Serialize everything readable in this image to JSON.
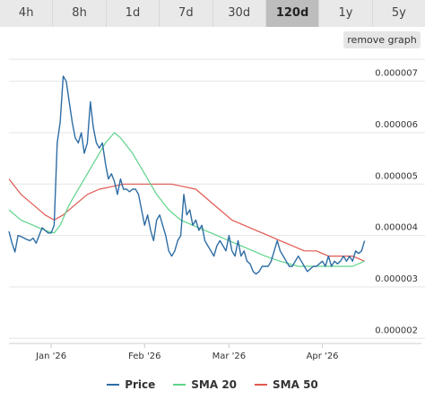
{
  "tabs": [
    {
      "label": "4h",
      "active": false
    },
    {
      "label": "8h",
      "active": false
    },
    {
      "label": "1d",
      "active": false
    },
    {
      "label": "7d",
      "active": false
    },
    {
      "label": "30d",
      "active": false
    },
    {
      "label": "120d",
      "active": true
    },
    {
      "label": "1y",
      "active": false
    },
    {
      "label": "5y",
      "active": false
    }
  ],
  "remove_graph_label": "remove graph",
  "chart_data": {
    "type": "line",
    "y_ticks": [
      "0.000002",
      "0.000003",
      "0.000004",
      "0.000005",
      "0.000006",
      "0.000007"
    ],
    "ylim": [
      1.9e-06,
      7.5e-06
    ],
    "x_ticks": [
      {
        "label": "Jan '26",
        "day": 0
      },
      {
        "label": "Feb '26",
        "day": 31
      },
      {
        "label": "Mar '26",
        "day": 59
      },
      {
        "label": "Apr '26",
        "day": 90
      }
    ],
    "x_range_days": [
      -14,
      105
    ],
    "grid": true,
    "legend_position": "bottom",
    "series": [
      {
        "name": "Price",
        "color": "#2e6da4",
        "points": [
          [
            -14,
            4.08e-06
          ],
          [
            -13,
            3.85e-06
          ],
          [
            -12,
            3.68e-06
          ],
          [
            -11,
            4e-06
          ],
          [
            -10,
            3.98e-06
          ],
          [
            -9,
            3.95e-06
          ],
          [
            -8,
            3.92e-06
          ],
          [
            -7,
            3.9e-06
          ],
          [
            -6,
            3.95e-06
          ],
          [
            -5,
            3.85e-06
          ],
          [
            -4,
            4e-06
          ],
          [
            -3,
            4.15e-06
          ],
          [
            -2,
            4.1e-06
          ],
          [
            -1,
            4.05e-06
          ],
          [
            0,
            4.05e-06
          ],
          [
            1,
            4.2e-06
          ],
          [
            2,
            5.8e-06
          ],
          [
            3,
            6.2e-06
          ],
          [
            4,
            7.1e-06
          ],
          [
            5,
            7e-06
          ],
          [
            6,
            6.6e-06
          ],
          [
            7,
            6.2e-06
          ],
          [
            8,
            5.9e-06
          ],
          [
            9,
            5.8e-06
          ],
          [
            10,
            6e-06
          ],
          [
            11,
            5.6e-06
          ],
          [
            12,
            5.8e-06
          ],
          [
            13,
            6.6e-06
          ],
          [
            14,
            6.1e-06
          ],
          [
            15,
            5.8e-06
          ],
          [
            16,
            5.7e-06
          ],
          [
            17,
            5.8e-06
          ],
          [
            18,
            5.4e-06
          ],
          [
            19,
            5.1e-06
          ],
          [
            20,
            5.2e-06
          ],
          [
            21,
            5.05e-06
          ],
          [
            22,
            4.8e-06
          ],
          [
            23,
            5.1e-06
          ],
          [
            24,
            4.9e-06
          ],
          [
            25,
            4.9e-06
          ],
          [
            26,
            4.85e-06
          ],
          [
            27,
            4.9e-06
          ],
          [
            28,
            4.9e-06
          ],
          [
            29,
            4.8e-06
          ],
          [
            30,
            4.5e-06
          ],
          [
            31,
            4.2e-06
          ],
          [
            32,
            4.4e-06
          ],
          [
            33,
            4.1e-06
          ],
          [
            34,
            3.9e-06
          ],
          [
            35,
            4.3e-06
          ],
          [
            36,
            4.4e-06
          ],
          [
            37,
            4.2e-06
          ],
          [
            38,
            4e-06
          ],
          [
            39,
            3.7e-06
          ],
          [
            40,
            3.6e-06
          ],
          [
            41,
            3.7e-06
          ],
          [
            42,
            3.9e-06
          ],
          [
            43,
            4e-06
          ],
          [
            44,
            4.8e-06
          ],
          [
            45,
            4.4e-06
          ],
          [
            46,
            4.5e-06
          ],
          [
            47,
            4.2e-06
          ],
          [
            48,
            4.3e-06
          ],
          [
            49,
            4.1e-06
          ],
          [
            50,
            4.2e-06
          ],
          [
            51,
            3.9e-06
          ],
          [
            52,
            3.8e-06
          ],
          [
            53,
            3.7e-06
          ],
          [
            54,
            3.6e-06
          ],
          [
            55,
            3.8e-06
          ],
          [
            56,
            3.9e-06
          ],
          [
            57,
            3.8e-06
          ],
          [
            58,
            3.7e-06
          ],
          [
            59,
            4e-06
          ],
          [
            60,
            3.7e-06
          ],
          [
            61,
            3.6e-06
          ],
          [
            62,
            3.9e-06
          ],
          [
            63,
            3.6e-06
          ],
          [
            64,
            3.7e-06
          ],
          [
            65,
            3.5e-06
          ],
          [
            66,
            3.45e-06
          ],
          [
            67,
            3.3e-06
          ],
          [
            68,
            3.25e-06
          ],
          [
            69,
            3.3e-06
          ],
          [
            70,
            3.4e-06
          ],
          [
            71,
            3.4e-06
          ],
          [
            72,
            3.4e-06
          ],
          [
            73,
            3.5e-06
          ],
          [
            74,
            3.7e-06
          ],
          [
            75,
            3.9e-06
          ],
          [
            76,
            3.7e-06
          ],
          [
            77,
            3.6e-06
          ],
          [
            78,
            3.5e-06
          ],
          [
            79,
            3.4e-06
          ],
          [
            80,
            3.4e-06
          ],
          [
            81,
            3.5e-06
          ],
          [
            82,
            3.6e-06
          ],
          [
            83,
            3.5e-06
          ],
          [
            84,
            3.4e-06
          ],
          [
            85,
            3.3e-06
          ],
          [
            86,
            3.35e-06
          ],
          [
            87,
            3.4e-06
          ],
          [
            88,
            3.4e-06
          ],
          [
            89,
            3.45e-06
          ],
          [
            90,
            3.5e-06
          ],
          [
            91,
            3.4e-06
          ],
          [
            92,
            3.6e-06
          ],
          [
            93,
            3.4e-06
          ],
          [
            94,
            3.5e-06
          ],
          [
            95,
            3.45e-06
          ],
          [
            96,
            3.5e-06
          ],
          [
            97,
            3.6e-06
          ],
          [
            98,
            3.5e-06
          ],
          [
            99,
            3.6e-06
          ],
          [
            100,
            3.5e-06
          ],
          [
            101,
            3.7e-06
          ],
          [
            102,
            3.65e-06
          ],
          [
            103,
            3.7e-06
          ],
          [
            104,
            3.9e-06
          ]
        ]
      },
      {
        "name": "SMA 20",
        "color": "#5fd38a",
        "points": [
          [
            -14,
            4.5e-06
          ],
          [
            -10,
            4.3e-06
          ],
          [
            -6,
            4.2e-06
          ],
          [
            -2,
            4.1e-06
          ],
          [
            1,
            4.05e-06
          ],
          [
            3,
            4.2e-06
          ],
          [
            6,
            4.6e-06
          ],
          [
            10,
            5e-06
          ],
          [
            14,
            5.4e-06
          ],
          [
            18,
            5.8e-06
          ],
          [
            21,
            6e-06
          ],
          [
            23,
            5.9e-06
          ],
          [
            27,
            5.6e-06
          ],
          [
            31,
            5.2e-06
          ],
          [
            35,
            4.8e-06
          ],
          [
            39,
            4.5e-06
          ],
          [
            43,
            4.3e-06
          ],
          [
            47,
            4.2e-06
          ],
          [
            51,
            4.1e-06
          ],
          [
            55,
            4e-06
          ],
          [
            59,
            3.9e-06
          ],
          [
            63,
            3.8e-06
          ],
          [
            67,
            3.7e-06
          ],
          [
            71,
            3.6e-06
          ],
          [
            76,
            3.5e-06
          ],
          [
            82,
            3.4e-06
          ],
          [
            88,
            3.4e-06
          ],
          [
            94,
            3.4e-06
          ],
          [
            100,
            3.4e-06
          ],
          [
            104,
            3.5e-06
          ]
        ]
      },
      {
        "name": "SMA 50",
        "color": "#e0584f",
        "points": [
          [
            -14,
            5.1e-06
          ],
          [
            -10,
            4.8e-06
          ],
          [
            -6,
            4.6e-06
          ],
          [
            -2,
            4.4e-06
          ],
          [
            1,
            4.3e-06
          ],
          [
            4,
            4.4e-06
          ],
          [
            8,
            4.6e-06
          ],
          [
            12,
            4.8e-06
          ],
          [
            16,
            4.9e-06
          ],
          [
            20,
            4.95e-06
          ],
          [
            24,
            5e-06
          ],
          [
            28,
            5e-06
          ],
          [
            32,
            5e-06
          ],
          [
            36,
            5e-06
          ],
          [
            40,
            5e-06
          ],
          [
            44,
            4.95e-06
          ],
          [
            48,
            4.9e-06
          ],
          [
            52,
            4.7e-06
          ],
          [
            56,
            4.5e-06
          ],
          [
            60,
            4.3e-06
          ],
          [
            64,
            4.2e-06
          ],
          [
            68,
            4.1e-06
          ],
          [
            72,
            4e-06
          ],
          [
            76,
            3.9e-06
          ],
          [
            80,
            3.8e-06
          ],
          [
            84,
            3.7e-06
          ],
          [
            88,
            3.7e-06
          ],
          [
            92,
            3.6e-06
          ],
          [
            96,
            3.6e-06
          ],
          [
            100,
            3.6e-06
          ],
          [
            104,
            3.5e-06
          ]
        ]
      }
    ]
  }
}
